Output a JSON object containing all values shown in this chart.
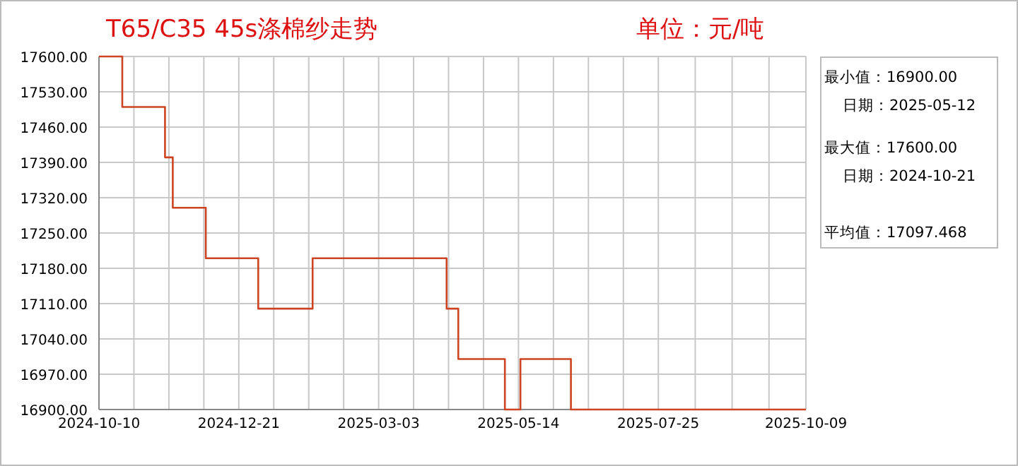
{
  "chart_data": [
    {
      "type": "step",
      "title": "T65/C35 45s涤棉纱走势",
      "subtitle": "单位：元/吨",
      "x": [
        "2024-10-10",
        "2024-10-22",
        "2024-11-13",
        "2024-11-17",
        "2024-12-04",
        "2024-12-31",
        "2025-01-28",
        "2025-04-07",
        "2025-04-13",
        "2025-05-07",
        "2025-05-15",
        "2025-06-10",
        "2025-10-09"
      ],
      "series": [
        {
          "color": "#cc4422",
          "values": [
            17600,
            17500,
            17400,
            17300,
            17200,
            17100,
            17200,
            17100,
            17000,
            16900,
            17000,
            16900,
            16900
          ]
        }
      ],
      "xlim": [
        "2024-10-10",
        "2025-10-09"
      ],
      "xticks": [
        "2024-10-10",
        "2024-12-21",
        "2025-03-03",
        "2025-05-14",
        "2025-07-25",
        "2025-10-09"
      ],
      "ylim": [
        16900,
        17600
      ],
      "yticks": [
        {
          "value": 17600,
          "label": "17600.00"
        },
        {
          "value": 17530,
          "label": "17530.00"
        },
        {
          "value": 17460,
          "label": "17460.00"
        },
        {
          "value": 17390,
          "label": "17390.00"
        },
        {
          "value": 17320,
          "label": "17320.00"
        },
        {
          "value": 17250,
          "label": "17250.00"
        },
        {
          "value": 17180,
          "label": "17180.00"
        },
        {
          "value": 17110,
          "label": "17110.00"
        },
        {
          "value": 17040,
          "label": "17040.00"
        },
        {
          "value": 16970,
          "label": "16970.00"
        },
        {
          "value": 16900,
          "label": "16900.00"
        }
      ],
      "grid": true,
      "line_style": "solid",
      "marker": "none"
    },
    {
      "type": "other",
      "annotations": [
        "最小值：16900.00",
        "日期：2025-05-12",
        "最大值：17600.00",
        "日期：2024-10-21",
        "平均值：17097.468"
      ]
    }
  ]
}
